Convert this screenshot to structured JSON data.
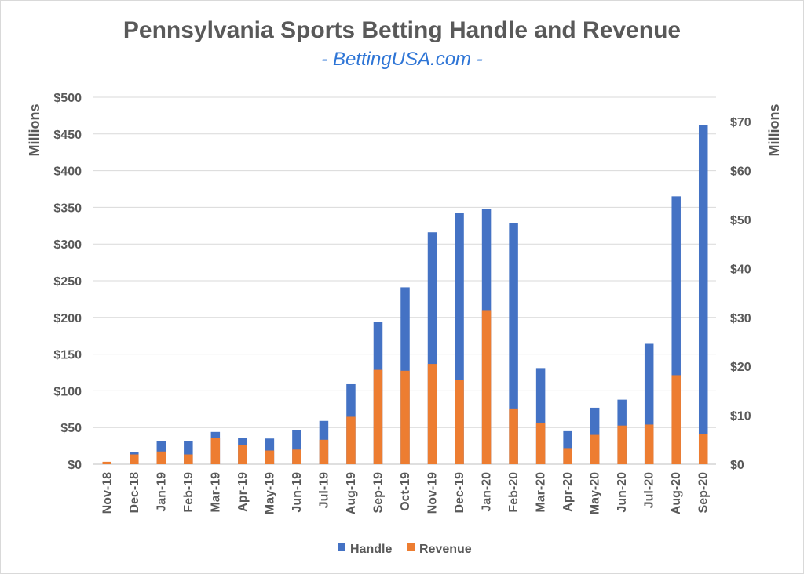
{
  "chart_data": {
    "type": "bar",
    "title": "Pennsylvania Sports Betting Handle and Revenue",
    "subtitle": "- BettingUSA.com -",
    "categories": [
      "Nov-18",
      "Dec-18",
      "Jan-19",
      "Feb-19",
      "Mar-19",
      "Apr-19",
      "May-19",
      "Jun-19",
      "Jul-19",
      "Aug-19",
      "Sep-19",
      "Oct-19",
      "Nov-19",
      "Dec-19",
      "Jan-20",
      "Feb-20",
      "Mar-20",
      "Apr-20",
      "May-20",
      "Jun-20",
      "Jul-20",
      "Aug-20",
      "Sep-20"
    ],
    "series": [
      {
        "name": "Handle",
        "axis": "left",
        "color": "#4472c4",
        "values": [
          1.4,
          16,
          31,
          31,
          44,
          36,
          35,
          46,
          59,
          109,
          194,
          241,
          316,
          342,
          348,
          329,
          131,
          45,
          77,
          88,
          164,
          365,
          462
        ]
      },
      {
        "name": "Revenue",
        "axis": "right",
        "color": "#ed7d31",
        "values": [
          0.5,
          2.0,
          2.6,
          2.0,
          5.4,
          4.0,
          2.8,
          3.0,
          5.0,
          9.7,
          19.3,
          19.1,
          20.5,
          17.3,
          31.5,
          11.4,
          8.5,
          3.3,
          6.0,
          7.9,
          8.1,
          18.2,
          6.2
        ]
      }
    ],
    "y_left": {
      "label": "Millions",
      "min": 0,
      "max": 500,
      "step": 50,
      "tick_labels": [
        "$0",
        "$50",
        "$100",
        "$150",
        "$200",
        "$250",
        "$300",
        "$350",
        "$400",
        "$450",
        "$500"
      ]
    },
    "y_right": {
      "label": "Millions",
      "min": 0,
      "max": 75,
      "step": 10,
      "tick_labels": [
        "$0",
        "$10",
        "$20",
        "$30",
        "$40",
        "$50",
        "$60",
        "$70"
      ]
    },
    "grid": true,
    "legend_position": "bottom"
  }
}
